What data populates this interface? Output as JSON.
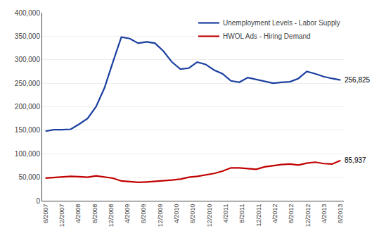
{
  "chart_data": {
    "type": "line",
    "series": [
      {
        "name": "Unemployment Levels - Labor Supply",
        "color": "#1B3FA0",
        "values": [
          148000,
          151000,
          151000,
          152000,
          163000,
          175000,
          200000,
          240000,
          295000,
          348000,
          345000,
          335000,
          338000,
          335000,
          318000,
          295000,
          280000,
          282000,
          295000,
          290000,
          278000,
          270000,
          255000,
          252000,
          262000,
          258000,
          255000,
          250000,
          252000,
          253000,
          260000,
          275000,
          270000,
          264000,
          260000,
          256825
        ]
      },
      {
        "name": "HWOL Ads - Hiring Demand",
        "color": "#C00000",
        "values": [
          48000,
          49000,
          50000,
          52000,
          51000,
          50000,
          53000,
          50000,
          48000,
          42000,
          40000,
          39000,
          40000,
          41000,
          42000,
          44000,
          46000,
          50000,
          52000,
          55000,
          58000,
          63000,
          70000,
          70000,
          68000,
          67000,
          72000,
          75000,
          77000,
          78000,
          76000,
          80000,
          82000,
          79000,
          78000,
          85937
        ]
      }
    ],
    "annotations": [
      "256,825",
      "85,937"
    ],
    "xlim": [
      -0.2,
      18.2
    ],
    "xticks": [
      {
        "value": 0,
        "label": "8/2007"
      },
      {
        "value": 1,
        "label": "12/2007"
      },
      {
        "value": 2,
        "label": "4/2008"
      },
      {
        "value": 3,
        "label": "8/2008"
      },
      {
        "value": 4,
        "label": "12/2008"
      },
      {
        "value": 5,
        "label": "4/2009"
      },
      {
        "value": 6,
        "label": "8/2009"
      },
      {
        "value": 7,
        "label": "12/2009"
      },
      {
        "value": 8,
        "label": "4/2010"
      },
      {
        "value": 9,
        "label": "8/2010"
      },
      {
        "value": 10,
        "label": "12/2010"
      },
      {
        "value": 11,
        "label": "4/2011"
      },
      {
        "value": 12,
        "label": "8/2011"
      },
      {
        "value": 13,
        "label": "12/2011"
      },
      {
        "value": 14,
        "label": "4/2012"
      },
      {
        "value": 15,
        "label": "8/2012"
      },
      {
        "value": 16,
        "label": "12/2012"
      },
      {
        "value": 17,
        "label": "4/2013"
      },
      {
        "value": 18,
        "label": "8/2013"
      }
    ],
    "ylim": [
      0,
      400000
    ],
    "yticks": [
      0,
      {
        "value": 50000,
        "label": "50,000"
      },
      {
        "value": 100000,
        "label": "100,000"
      },
      {
        "value": 150000,
        "label": "150,000"
      },
      {
        "value": 200000,
        "label": "200,000"
      },
      {
        "value": 250000,
        "label": "250,000"
      },
      {
        "value": 300000,
        "label": "300,000"
      },
      {
        "value": 350000,
        "label": "350,000"
      },
      {
        "value": 400000,
        "label": "400,000"
      }
    ],
    "grid": true,
    "legend": "upper right"
  }
}
